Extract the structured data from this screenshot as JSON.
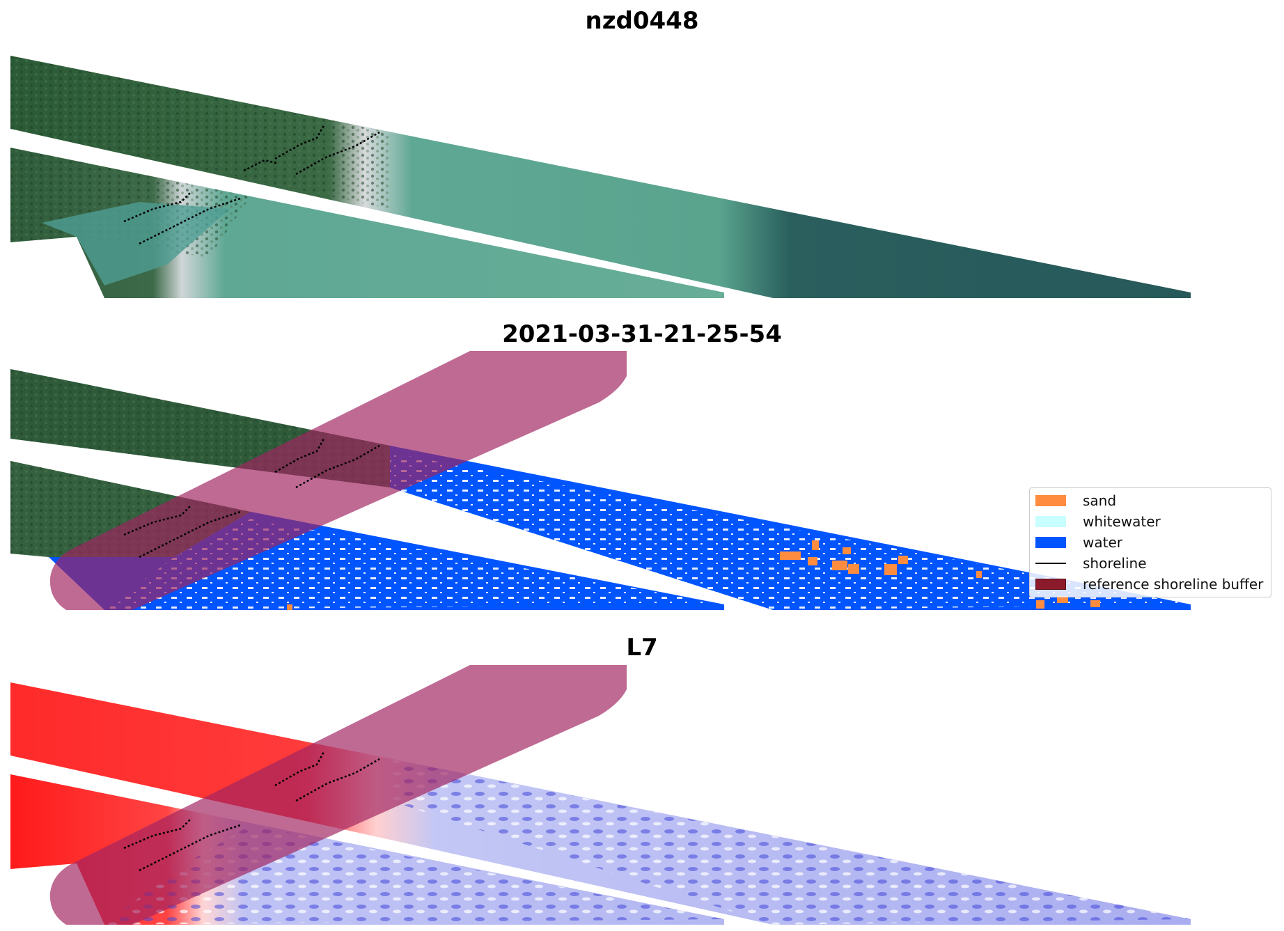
{
  "panels": [
    {
      "title": "nzd0448"
    },
    {
      "title": "2021-03-31-21-25-54"
    },
    {
      "title": "L7"
    }
  ],
  "legend": {
    "items": [
      {
        "label": "sand",
        "color": "#ff8c3f",
        "kind": "patch"
      },
      {
        "label": "whitewater",
        "color": "#c8ffff",
        "kind": "patch"
      },
      {
        "label": "water",
        "color": "#0055ff",
        "kind": "patch"
      },
      {
        "label": "shoreline",
        "color": "#000000",
        "kind": "line"
      },
      {
        "label": "reference shoreline buffer",
        "color": "#8b1a2b",
        "kind": "patch"
      }
    ]
  },
  "colors": {
    "vegetation": "#2f5a3a",
    "sea_green": "#5aa48e",
    "deep_sea": "#2a5f5e",
    "buffer": "#a02460",
    "mndwi_land": "#ff2020",
    "mndwi_water": "#b8bcf4"
  }
}
